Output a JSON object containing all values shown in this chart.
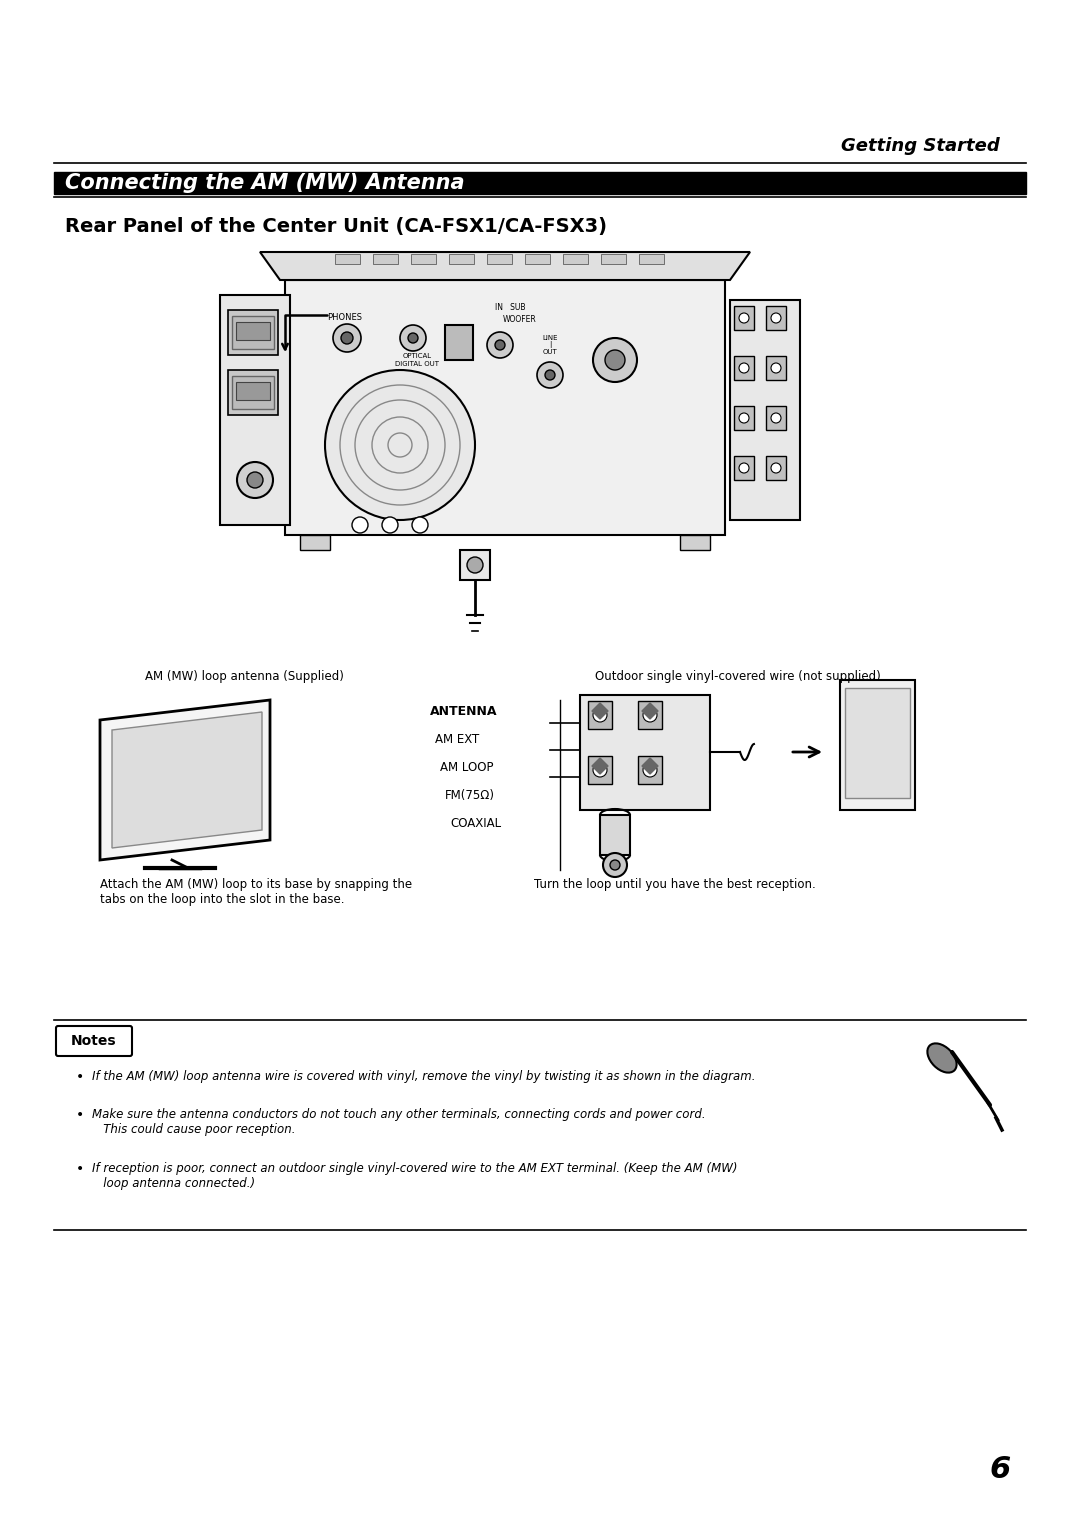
{
  "page_background": "#ffffff",
  "header_text": "Getting Started",
  "section_title": "Connecting the AM (MW) Antenna",
  "subsection_title": "Rear Panel of the Center Unit (CA-FSX1/CA-FSX3)",
  "caption_left": "AM (MW) loop antenna (Supplied)",
  "caption_right": "Outdoor single vinyl-covered wire (not supplied)",
  "label_bottom_left": "Attach the AM (MW) loop to its base by snapping the\ntabs on the loop into the slot in the base.",
  "label_bottom_right": "Turn the loop until you have the best reception.",
  "notes_title": "Notes",
  "note1": "If the AM (MW) loop antenna wire is covered with vinyl, remove the vinyl by twisting it as shown in the diagram.",
  "note2": "Make sure the antenna conductors do not touch any other terminals, connecting cords and power cord.\n   This could cause poor reception.",
  "note3": "If reception is poor, connect an outdoor single vinyl-covered wire to the AM EXT terminal. (Keep the AM (MW)\n   loop antenna connected.)",
  "page_number": "6",
  "antenna_labels": [
    "ANTENNA",
    "AM EXT",
    "AM LOOP",
    "FM(75Ω)",
    "COAXIAL"
  ]
}
